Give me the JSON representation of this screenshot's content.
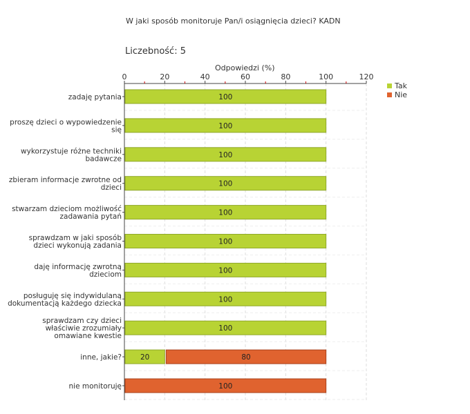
{
  "title": "W jaki sposób monitoruje Pan/i osiągnięcia dzieci?  KADN",
  "count_text": "Liczebność:  5",
  "colors": {
    "tak": "#b8d334",
    "tak_border": "#8fa82a",
    "nie": "#e0632f",
    "nie_border": "#a8401b",
    "grid": "#dddddd",
    "axis": "#444444",
    "tick": "#cc0000"
  },
  "chart_data": {
    "type": "bar",
    "orientation": "horizontal",
    "stacked": true,
    "xlabel": "Odpowiedzi (%)",
    "xlim": [
      0,
      120
    ],
    "xticks": [
      0,
      20,
      40,
      60,
      80,
      100,
      120
    ],
    "grid": true,
    "legend_position": "top-right",
    "categories": [
      "zadaję pytania",
      "proszę dzieci o wypowiedzenie się",
      "wykorzystuje różne techniki badawcze",
      "zbieram informacje zwrotne od dzieci",
      "stwarzam dzieciom możliwość zadawania pytań",
      "sprawdzam w jaki sposób dzieci wykonują zadania",
      "daję informację zwrotną dzieciom",
      "posługuję się indywidulaną dokumentacją każdego dziecka",
      "sprawdzam czy dzieci właściwie zrozumiały omawiane kwestie",
      "inne, jakie?",
      "nie monitoruję"
    ],
    "category_lines": [
      [
        "zadaję pytania"
      ],
      [
        "proszę dzieci o wypowiedzenie",
        "się"
      ],
      [
        "wykorzystuje różne techniki",
        "badawcze"
      ],
      [
        "zbieram informacje zwrotne od",
        "dzieci"
      ],
      [
        "stwarzam dzieciom możliwość",
        "zadawania pytań"
      ],
      [
        "sprawdzam w jaki sposób",
        "dzieci wykonują zadania"
      ],
      [
        "daję informację zwrotną",
        "dzieciom"
      ],
      [
        "posługuję się indywidulaną",
        "dokumentacją każdego dziecka"
      ],
      [
        "sprawdzam czy dzieci",
        "właściwie zrozumiały",
        "omawiane kwestie"
      ],
      [
        "inne, jakie?"
      ],
      [
        "nie monitoruję"
      ]
    ],
    "series": [
      {
        "name": "Tak",
        "values": [
          100,
          100,
          100,
          100,
          100,
          100,
          100,
          100,
          100,
          20,
          0
        ]
      },
      {
        "name": "Nie",
        "values": [
          0,
          0,
          0,
          0,
          0,
          0,
          0,
          0,
          0,
          80,
          100
        ]
      }
    ]
  }
}
